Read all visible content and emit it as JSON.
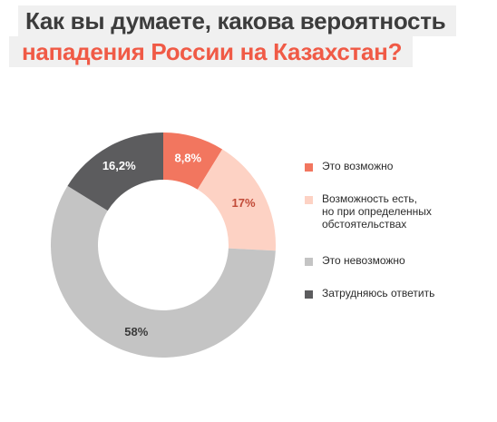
{
  "title": {
    "line1": "Как вы думаете, какова вероятность",
    "line2": "нападения России на Казахстан?"
  },
  "colors": {
    "background": "#ffffff",
    "title_band": "#f0f0f0",
    "title_primary": "#3c3c3c",
    "title_accent": "#f05a46"
  },
  "chart_data": {
    "type": "pie",
    "variant": "donut",
    "title": "Как вы думаете, какова вероятность нападения России на Казахстан?",
    "unit": "%",
    "legend_position": "right",
    "series": [
      {
        "name": "Это возможно",
        "label_lines": [
          "Это возможно"
        ],
        "value": 8.8,
        "data_label": "8,8%",
        "color": "#f2765f",
        "label_color": "#ffffff"
      },
      {
        "name": "Возможность есть, но при определенных обстоятельствах",
        "label_lines": [
          "Возможность есть,",
          "но при определенных",
          "обстоятельствах"
        ],
        "value": 17,
        "data_label": "17%",
        "color": "#fdd2c4",
        "label_color": "#c24b38"
      },
      {
        "name": "Это невозможно",
        "label_lines": [
          "Это невозможно"
        ],
        "value": 58,
        "data_label": "58%",
        "color": "#c4c4c4",
        "label_color": "#3a3a3a"
      },
      {
        "name": "Затрудняюсь ответить",
        "label_lines": [
          "Затрудняюсь ответить"
        ],
        "value": 16.2,
        "data_label": "16,2%",
        "color": "#5c5c5e",
        "label_color": "#ffffff"
      }
    ]
  }
}
